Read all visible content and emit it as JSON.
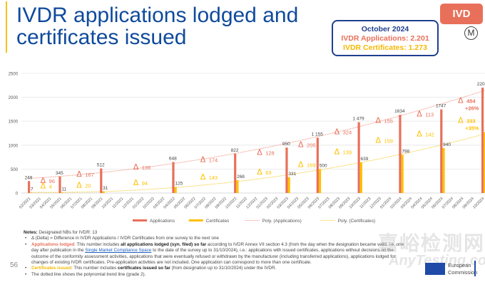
{
  "header": {
    "title_line1": "IVDR applications lodged and",
    "title_line2": "certificates issued",
    "badge": "IVD",
    "m_icon": "M",
    "summary": {
      "month": "October 2024",
      "applications": "IVDR Applications: 2.201",
      "certificates": "IVDR Certificates: 1.273"
    }
  },
  "colors": {
    "applications": "#e8705a",
    "certificates": "#ffc000",
    "title": "#0f4a9c"
  },
  "chart_data": {
    "type": "bar",
    "title": "",
    "xlabel": "",
    "ylabel": "",
    "ylim": [
      0,
      2500
    ],
    "yticks": [
      0,
      500,
      1000,
      1500,
      2000,
      2500
    ],
    "grid": true,
    "legend_position": "bottom",
    "categories": [
      "02/2021",
      "03/2021",
      "04/2021",
      "05/2021",
      "06/2021",
      "07/2021",
      "08/2021",
      "09/2021",
      "10/2021",
      "11/2021",
      "12/2021",
      "01/2022",
      "02/2022",
      "03/2022",
      "04/2022",
      "05/2022",
      "06/2022",
      "07/2022",
      "08/2022",
      "09/2022",
      "10/2022",
      "11/2022",
      "12/2022",
      "01/2023",
      "02/2023",
      "03/2023",
      "04/2023",
      "05/2023",
      "06/2023",
      "07/2023",
      "08/2023",
      "09/2023",
      "10/2023",
      "11/2023",
      "12/2023",
      "01/2024",
      "02/2024",
      "03/2024",
      "04/2024",
      "05/2024",
      "06/2024",
      "07/2024",
      "08/2024",
      "09/2024",
      "10/2024"
    ],
    "survey_points": [
      {
        "category": "02/2021",
        "applications": 249,
        "applications_label": "249",
        "certificates": 7,
        "certificates_label": "7"
      },
      {
        "category": "05/2021",
        "applications": 345,
        "applications_label": "345",
        "certificates": 11,
        "certificates_label": "11"
      },
      {
        "category": "09/2021",
        "applications": 512,
        "applications_label": "512",
        "certificates": 31,
        "certificates_label": "31"
      },
      {
        "category": "04/2022",
        "applications": 648,
        "applications_label": "648",
        "certificates": 125,
        "certificates_label": "125"
      },
      {
        "category": "10/2022",
        "applications": 822,
        "applications_label": "822",
        "certificates": 268,
        "certificates_label": "268"
      },
      {
        "category": "03/2023",
        "applications": 950,
        "applications_label": "950",
        "certificates": 331,
        "certificates_label": "331"
      },
      {
        "category": "06/2023",
        "applications": 1155,
        "applications_label": "1 155",
        "certificates": 500,
        "certificates_label": "500"
      },
      {
        "category": "10/2023",
        "applications": 1479,
        "applications_label": "1 479",
        "certificates": 639,
        "certificates_label": "639"
      },
      {
        "category": "02/2024",
        "applications": 1634,
        "applications_label": "1634",
        "certificates": 798,
        "certificates_label": "798"
      },
      {
        "category": "06/2024",
        "applications": 1747,
        "applications_label": "1747",
        "certificates": 940,
        "certificates_label": "940"
      },
      {
        "category": "10/2024",
        "applications": 2201,
        "applications_label": "2201",
        "certificates": 1273,
        "certificates_label": "1273"
      }
    ],
    "deltas": [
      {
        "between": [
          "02/2021",
          "05/2021"
        ],
        "applications": "96",
        "certificates": "4"
      },
      {
        "between": [
          "05/2021",
          "09/2021"
        ],
        "applications": "167",
        "certificates": "20"
      },
      {
        "between": [
          "09/2021",
          "04/2022"
        ],
        "applications": "136",
        "certificates": "94"
      },
      {
        "between": [
          "04/2022",
          "10/2022"
        ],
        "applications": "174",
        "certificates": "143"
      },
      {
        "between": [
          "10/2022",
          "03/2023"
        ],
        "applications": "128",
        "certificates": "63"
      },
      {
        "between": [
          "03/2023",
          "06/2023"
        ],
        "applications": "205",
        "certificates": "169"
      },
      {
        "between": [
          "06/2023",
          "10/2023"
        ],
        "applications": "324",
        "certificates": "139"
      },
      {
        "between": [
          "10/2023",
          "02/2024"
        ],
        "applications": "155",
        "certificates": "159"
      },
      {
        "between": [
          "02/2024",
          "06/2024"
        ],
        "applications": "113",
        "certificates": "142"
      },
      {
        "between": [
          "06/2024",
          "10/2024"
        ],
        "applications": "454",
        "applications_pct": "+26%",
        "certificates": "333",
        "certificates_pct": "+35%"
      }
    ],
    "delta_symbol": "Δ",
    "series": [
      {
        "name": "Applications",
        "type": "bar"
      },
      {
        "name": "Certificates",
        "type": "bar"
      },
      {
        "name": "Poly. (Applications)",
        "type": "trendline"
      },
      {
        "name": "Poly. (Certificates)",
        "type": "trendline"
      }
    ]
  },
  "notes": {
    "heading": "Notes:",
    "heading_text": " Designated NBs for IVDR: 13",
    "delta_note": "Δ (Delta) = Difference in IVDR Applications / IVDR Certificates from one survey to the next one",
    "apps_label": "Applications lodged",
    "apps_text1": ": This number includes ",
    "apps_bold": "all applications lodged (syn. filed) so far",
    "apps_text2": " according to IVDR Annex VII section 4.3 (from the day when the designation became valid, i.e. one day after publication in the ",
    "apps_link": "Single Market Compliance Space",
    "apps_text3": " to the date of the survey up to 31/10/2024), i.e.: applications with issued certificates, applications without decisions on the outcome of the conformity assessment activities, applications that were eventually refused or withdrawn by the manufacturer (including transferred applications), applications lodged for changes of existing IVDR certificates. Pre-application activities are not included. One application can correspond to more than one certificate.",
    "certs_label": "Certificates issued",
    "certs_text1": ": This number includes ",
    "certs_bold": "certificates issued so far",
    "certs_text2": " (from designation up to 31/10/2024) under the IVDR.",
    "trend_note": "The dotted line shows the polynomial trend line (grade 2)."
  },
  "footer": {
    "page_number": "56",
    "org_line1": "European",
    "org_line2": "Commission",
    "watermark_cn": "嘉峪检测网",
    "watermark_en": "AnyTesting.com"
  }
}
